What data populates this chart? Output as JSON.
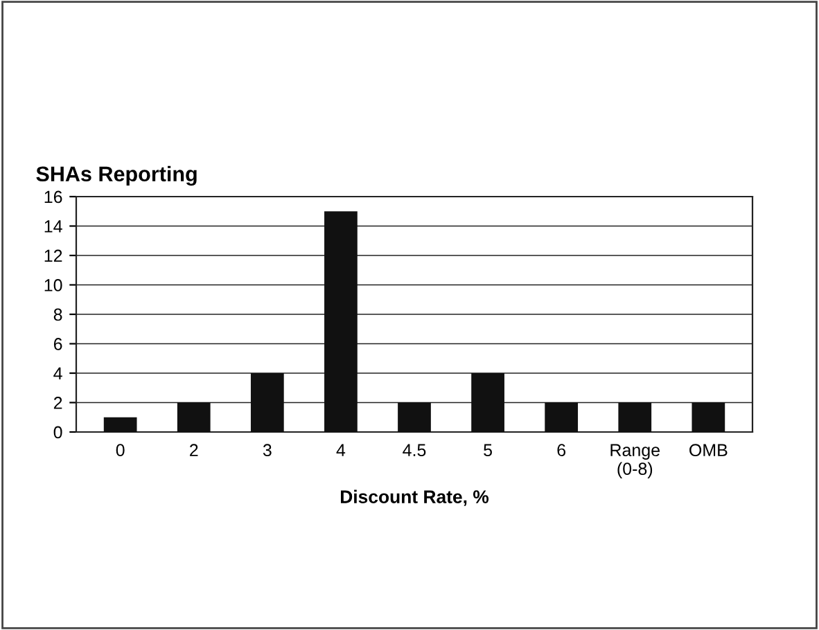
{
  "chart_data": {
    "type": "bar",
    "title": "SHAs Reporting",
    "xlabel": "Discount Rate, %",
    "categories": [
      "0",
      "2",
      "3",
      "4",
      "4.5",
      "5",
      "6",
      "Range\n(0-8)",
      "OMB"
    ],
    "values": [
      1,
      2,
      4,
      15,
      2,
      4,
      2,
      2,
      2
    ],
    "color": "#111111",
    "ylim": [
      0,
      16
    ],
    "yticks": [
      0,
      2,
      4,
      6,
      8,
      10,
      12,
      14,
      16
    ],
    "grid": "y"
  }
}
